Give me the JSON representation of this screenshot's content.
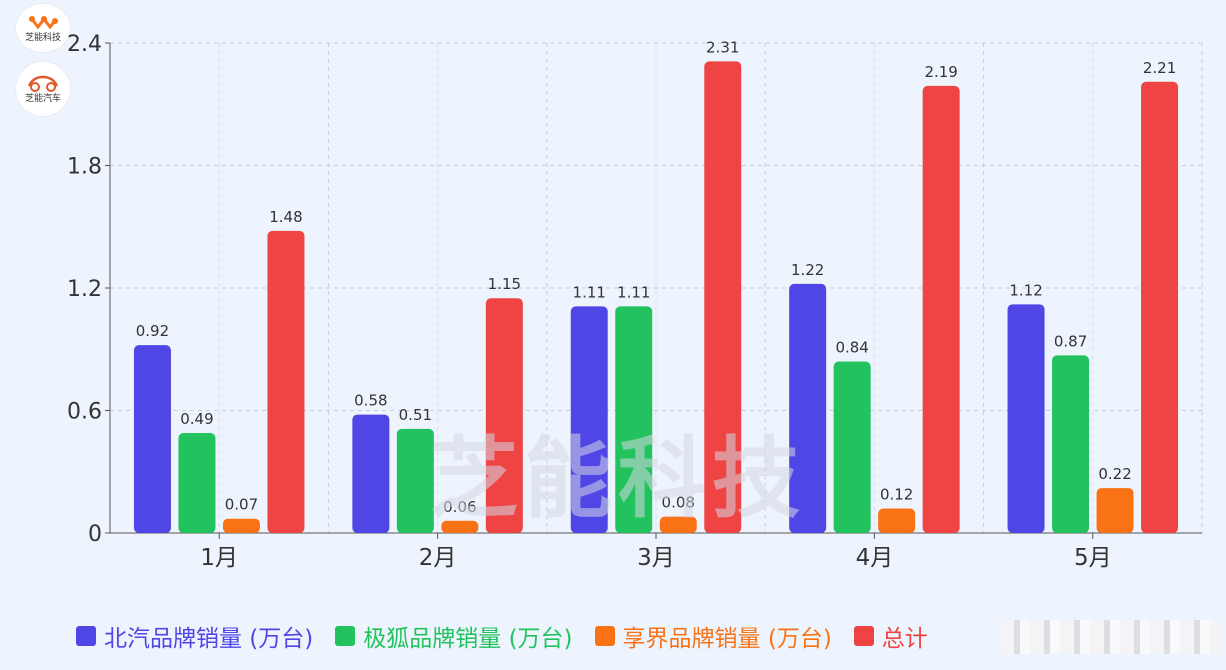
{
  "logos": [
    {
      "icon": "molecule-logo-icon",
      "text": "芝能科技"
    },
    {
      "icon": "car-logo-icon",
      "text": "芝能汽车"
    }
  ],
  "watermark": "芝能科技",
  "colors": {
    "beiqi": "#5046e5",
    "jihu": "#22c35e",
    "xiangjie": "#f97316",
    "total": "#ef4444",
    "grid": "#c8cdd8",
    "axis": "#555555",
    "text": "#333333"
  },
  "chart_data": {
    "type": "bar",
    "categories": [
      "1月",
      "2月",
      "3月",
      "4月",
      "5月"
    ],
    "series": [
      {
        "name": "北汽品牌销量 (万台)",
        "values": [
          0.92,
          0.58,
          1.11,
          1.22,
          1.12
        ],
        "color": "#5046e5"
      },
      {
        "name": "极狐品牌销量 (万台)",
        "values": [
          0.49,
          0.51,
          1.11,
          0.84,
          0.87
        ],
        "color": "#22c35e"
      },
      {
        "name": "享界品牌销量 (万台)",
        "values": [
          0.07,
          0.06,
          0.08,
          0.12,
          0.22
        ],
        "color": "#f97316"
      },
      {
        "name": "总计",
        "values": [
          1.48,
          1.15,
          2.31,
          2.19,
          2.21
        ],
        "color": "#ef4444"
      }
    ],
    "yticks": [
      "0",
      "0.6",
      "1.2",
      "1.8",
      "2.4"
    ],
    "ylim": [
      0,
      2.4
    ],
    "grid": true,
    "legend": "bottom"
  }
}
